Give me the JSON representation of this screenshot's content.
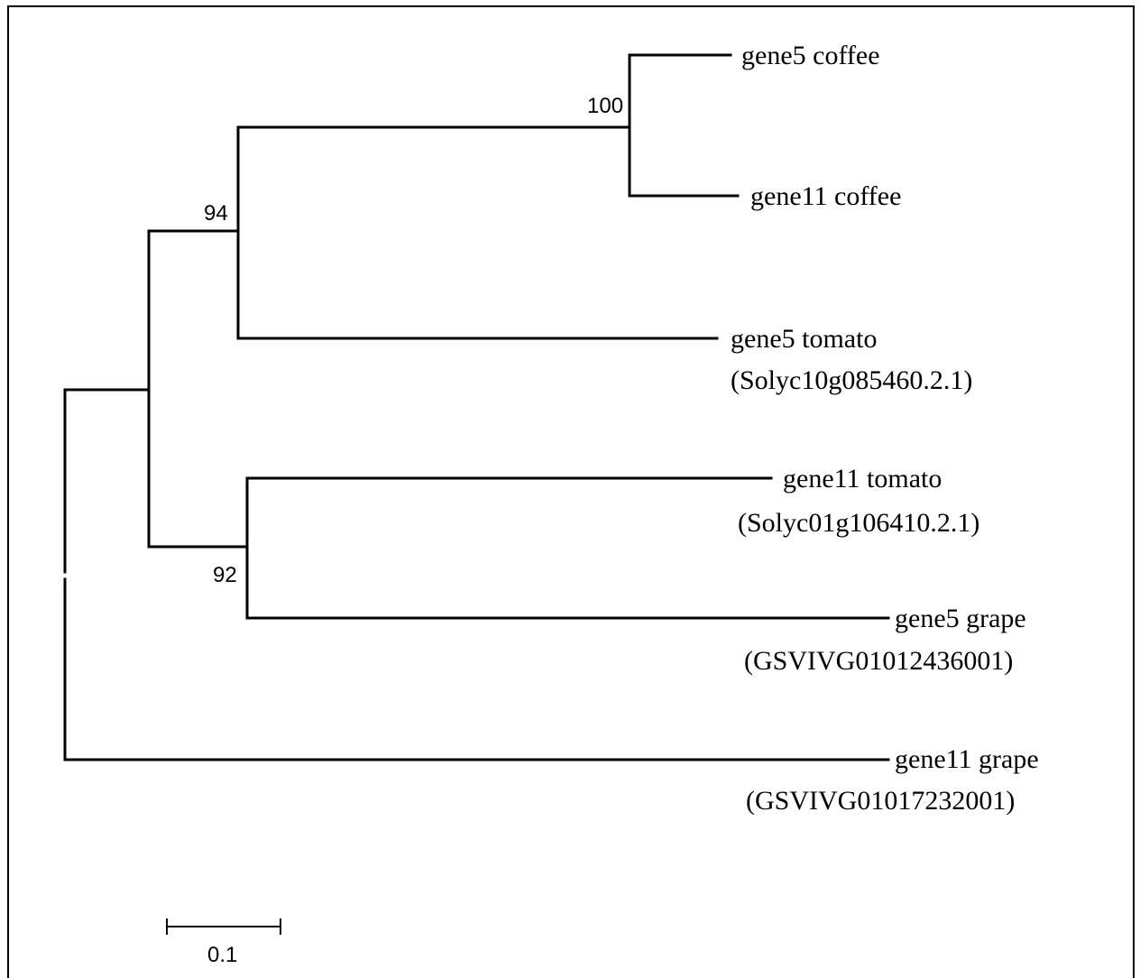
{
  "tree": {
    "leaves": [
      {
        "id": "leaf-gene5-coffee",
        "lines": [
          "gene5 coffee"
        ]
      },
      {
        "id": "leaf-gene11-coffee",
        "lines": [
          "gene11 coffee"
        ]
      },
      {
        "id": "leaf-gene5-tomato",
        "lines": [
          "gene5 tomato",
          "(Solyc10g085460.2.1)"
        ]
      },
      {
        "id": "leaf-gene11-tomato",
        "lines": [
          "gene11 tomato",
          "(Solyc01g106410.2.1)"
        ]
      },
      {
        "id": "leaf-gene5-grape",
        "lines": [
          "gene5 grape",
          "(GSVIVG01012436001)"
        ]
      },
      {
        "id": "leaf-gene11-grape",
        "lines": [
          "gene11 grape",
          "(GSVIVG01017232001)"
        ]
      }
    ],
    "support_values": {
      "coffee_clade": "100",
      "coffee_tomato5_clade": "94",
      "tomato11_grape5_clade": "92"
    }
  },
  "scale_bar": {
    "label": "0.1",
    "value": 0.1
  }
}
